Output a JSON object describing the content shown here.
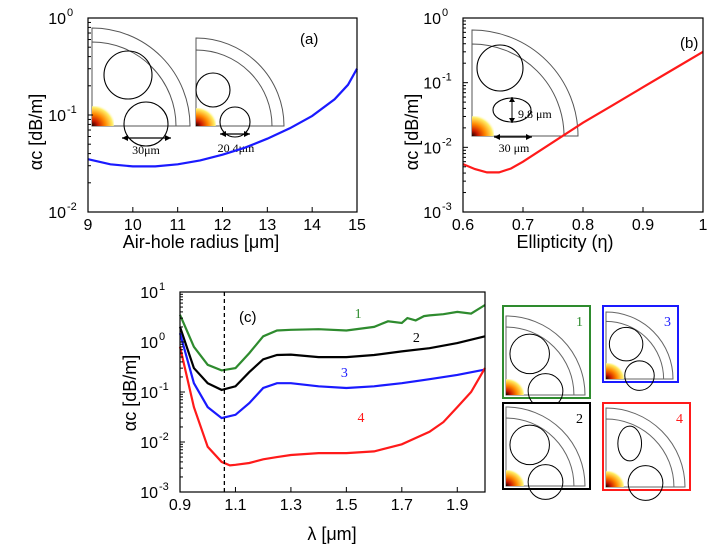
{
  "chart_data": [
    {
      "type": "line",
      "panel_label": "(a)",
      "xlabel": "Air-hole radius [μm]",
      "ylabel": "αc [dB/m]",
      "xlim": [
        9,
        15
      ],
      "ylim_log10": [
        -2,
        0
      ],
      "log_y": true,
      "x_ticks": [
        "9",
        "10",
        "11",
        "12",
        "13",
        "14",
        "15"
      ],
      "y_ticks": [
        "10",
        "10",
        "10"
      ],
      "y_tick_exponents": [
        "-2",
        "-1",
        "0"
      ],
      "series": [
        {
          "color": "#1a1aff",
          "x": [
            9.0,
            9.5,
            10.0,
            10.5,
            11.0,
            11.5,
            12.0,
            12.5,
            13.0,
            13.5,
            14.0,
            14.5,
            14.8,
            15.0
          ],
          "y": [
            0.035,
            0.031,
            0.0295,
            0.0295,
            0.031,
            0.034,
            0.039,
            0.046,
            0.057,
            0.073,
            0.098,
            0.145,
            0.205,
            0.3
          ]
        }
      ],
      "inset_labels": [
        "30μm",
        "20.4μm"
      ]
    },
    {
      "type": "line",
      "panel_label": "(b)",
      "xlabel": "Ellipticity (η)",
      "ylabel": "αc [dB/m]",
      "xlim": [
        0.6,
        1.0
      ],
      "ylim_log10": [
        -3,
        0
      ],
      "log_y": true,
      "x_ticks": [
        "0.6",
        "0.7",
        "0.8",
        "0.9",
        "1"
      ],
      "y_ticks": [
        "10",
        "10",
        "10",
        "10"
      ],
      "y_tick_exponents": [
        "-3",
        "-2",
        "-1",
        "0"
      ],
      "series": [
        {
          "color": "#ff1a1a",
          "x": [
            0.6,
            0.62,
            0.64,
            0.66,
            0.68,
            0.7,
            0.75,
            0.8,
            0.85,
            0.9,
            0.95,
            1.0
          ],
          "y": [
            0.0055,
            0.0046,
            0.0041,
            0.0041,
            0.0047,
            0.006,
            0.012,
            0.024,
            0.045,
            0.085,
            0.16,
            0.3
          ]
        }
      ],
      "inset_labels": [
        "9.8 μm",
        "30 μm"
      ]
    },
    {
      "type": "line",
      "panel_label": "(c)",
      "xlabel": "λ [μm]",
      "ylabel": "αc [dB/m]",
      "xlim": [
        0.9,
        2.0
      ],
      "ylim_log10": [
        -3,
        1
      ],
      "log_y": true,
      "x_ticks": [
        "0.9",
        "1.1",
        "1.3",
        "1.5",
        "1.7",
        "1.9"
      ],
      "y_ticks": [
        "10",
        "10",
        "10",
        "10",
        "10"
      ],
      "y_tick_exponents": [
        "-3",
        "-2",
        "-1",
        "0",
        "1"
      ],
      "vline_x": 1.06,
      "series": [
        {
          "name": "1",
          "color": "#2e8b2e",
          "x": [
            0.9,
            0.95,
            1.0,
            1.05,
            1.1,
            1.15,
            1.2,
            1.25,
            1.3,
            1.4,
            1.5,
            1.6,
            1.65,
            1.7,
            1.72,
            1.75,
            1.78,
            1.8,
            1.85,
            1.9,
            1.95,
            2.0
          ],
          "y": [
            3.5,
            0.8,
            0.35,
            0.27,
            0.3,
            0.6,
            1.3,
            1.7,
            1.75,
            1.8,
            1.7,
            2.0,
            2.6,
            2.4,
            3.0,
            2.7,
            3.3,
            3.4,
            3.6,
            4.0,
            3.7,
            5.5
          ]
        },
        {
          "name": "2",
          "color": "#000000",
          "x": [
            0.9,
            0.95,
            1.0,
            1.05,
            1.1,
            1.15,
            1.2,
            1.25,
            1.3,
            1.4,
            1.5,
            1.6,
            1.7,
            1.8,
            1.9,
            2.0
          ],
          "y": [
            2.0,
            0.3,
            0.15,
            0.11,
            0.13,
            0.25,
            0.45,
            0.55,
            0.56,
            0.5,
            0.5,
            0.55,
            0.65,
            0.75,
            0.95,
            1.3
          ]
        },
        {
          "name": "3",
          "color": "#1a1aff",
          "x": [
            0.9,
            0.95,
            1.0,
            1.05,
            1.1,
            1.15,
            1.2,
            1.25,
            1.3,
            1.4,
            1.5,
            1.6,
            1.7,
            1.8,
            1.9,
            2.0
          ],
          "y": [
            1.5,
            0.15,
            0.05,
            0.03,
            0.035,
            0.06,
            0.12,
            0.15,
            0.15,
            0.13,
            0.12,
            0.13,
            0.15,
            0.18,
            0.22,
            0.28
          ]
        },
        {
          "name": "4",
          "color": "#ff1a1a",
          "x": [
            0.9,
            0.95,
            1.0,
            1.05,
            1.08,
            1.1,
            1.15,
            1.2,
            1.25,
            1.3,
            1.4,
            1.5,
            1.6,
            1.7,
            1.75,
            1.8,
            1.85,
            1.9,
            1.95,
            2.0
          ],
          "y": [
            0.8,
            0.05,
            0.008,
            0.004,
            0.0034,
            0.0035,
            0.0038,
            0.0045,
            0.005,
            0.0055,
            0.006,
            0.006,
            0.0065,
            0.009,
            0.012,
            0.016,
            0.025,
            0.05,
            0.1,
            0.3
          ]
        }
      ],
      "legend_boxes": [
        {
          "number": "1",
          "color": "#2e8b2e"
        },
        {
          "number": "3",
          "color": "#1a1aff"
        },
        {
          "number": "2",
          "color": "#000000"
        },
        {
          "number": "4",
          "color": "#ff1a1a"
        }
      ]
    }
  ]
}
